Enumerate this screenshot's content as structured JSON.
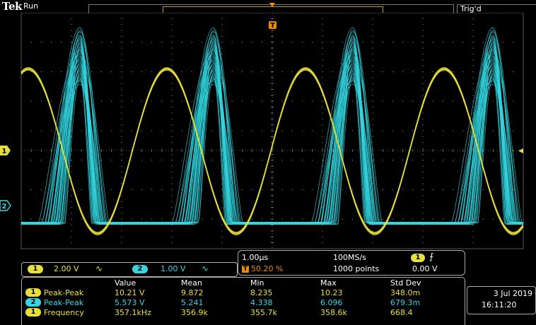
{
  "header": {
    "brand": "Tek",
    "status": "Run",
    "trigger_status": "Trig'd"
  },
  "markers": {
    "ch1": "1",
    "ch2": "2",
    "trigger_T": "T"
  },
  "channels": [
    {
      "id": "1",
      "scale": "2.00 V",
      "coupling_icon": "∿",
      "color": "#e8e03a"
    },
    {
      "id": "2",
      "scale": "1.00 V",
      "coupling_icon": "∿",
      "color": "#33d6e0"
    }
  ],
  "timebase": {
    "scale": "1.00µs",
    "sample_rate": "100MS/s",
    "position": "50.20 %",
    "record_length": "1000 points"
  },
  "trigger": {
    "source": "1",
    "slope_icon": "⨍",
    "level": "0.00 V"
  },
  "measurements": {
    "headers": [
      "Value",
      "Mean",
      "Min",
      "Max",
      "Std Dev"
    ],
    "rows": [
      {
        "ch": "1",
        "name": "Peak-Peak",
        "value": "10.21 V",
        "mean": "9.872",
        "min": "8.235",
        "max": "10.23",
        "std": "348.0m"
      },
      {
        "ch": "2",
        "name": "Peak-Peak",
        "value": "5.573 V",
        "mean": "5.241",
        "min": "4.338",
        "max": "6.096",
        "std": "679.3m"
      },
      {
        "ch": "1",
        "name": "Frequency",
        "value": "357.1kHz",
        "mean": "356.9k",
        "min": "355.7k",
        "max": "358.6k",
        "std": "668.4"
      }
    ]
  },
  "datetime": {
    "date": "3 Jul  2019",
    "time": "16:11:20"
  },
  "colors": {
    "ch1": "#e8e03a",
    "ch2": "#33d6e0",
    "grid": "#8a8a8a",
    "trigger_orange": "#f08a00"
  }
}
